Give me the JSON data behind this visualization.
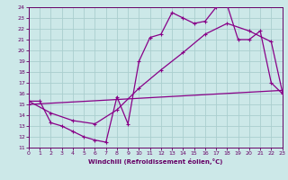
{
  "xlabel": "Windchill (Refroidissement éolien,°C)",
  "bg_color": "#cce8e8",
  "line_color": "#880088",
  "grid_color": "#aacece",
  "xlim": [
    0,
    23
  ],
  "ylim": [
    11,
    24
  ],
  "xticks": [
    0,
    1,
    2,
    3,
    4,
    5,
    6,
    7,
    8,
    9,
    10,
    11,
    12,
    13,
    14,
    15,
    16,
    17,
    18,
    19,
    20,
    21,
    22,
    23
  ],
  "yticks": [
    11,
    12,
    13,
    14,
    15,
    16,
    17,
    18,
    19,
    20,
    21,
    22,
    23,
    24
  ],
  "line1_x": [
    0,
    1,
    2,
    3,
    4,
    5,
    6,
    7,
    8,
    9,
    10,
    11,
    12,
    13,
    14,
    15,
    16,
    17,
    18,
    19,
    20,
    21,
    22,
    23
  ],
  "line1_y": [
    15.3,
    15.3,
    13.3,
    13.0,
    12.5,
    12.0,
    11.7,
    11.5,
    15.7,
    13.2,
    19.0,
    21.2,
    21.5,
    23.5,
    23.0,
    22.5,
    22.7,
    24.0,
    24.2,
    21.0,
    21.0,
    21.8,
    17.0,
    16.0
  ],
  "line2_x": [
    0,
    2,
    4,
    6,
    8,
    10,
    12,
    14,
    16,
    18,
    20,
    22,
    23
  ],
  "line2_y": [
    15.3,
    14.2,
    13.5,
    13.2,
    14.5,
    16.5,
    18.2,
    19.8,
    21.5,
    22.5,
    21.8,
    20.8,
    16.2
  ],
  "line3_x": [
    0,
    23
  ],
  "line3_y": [
    15.0,
    16.3
  ]
}
